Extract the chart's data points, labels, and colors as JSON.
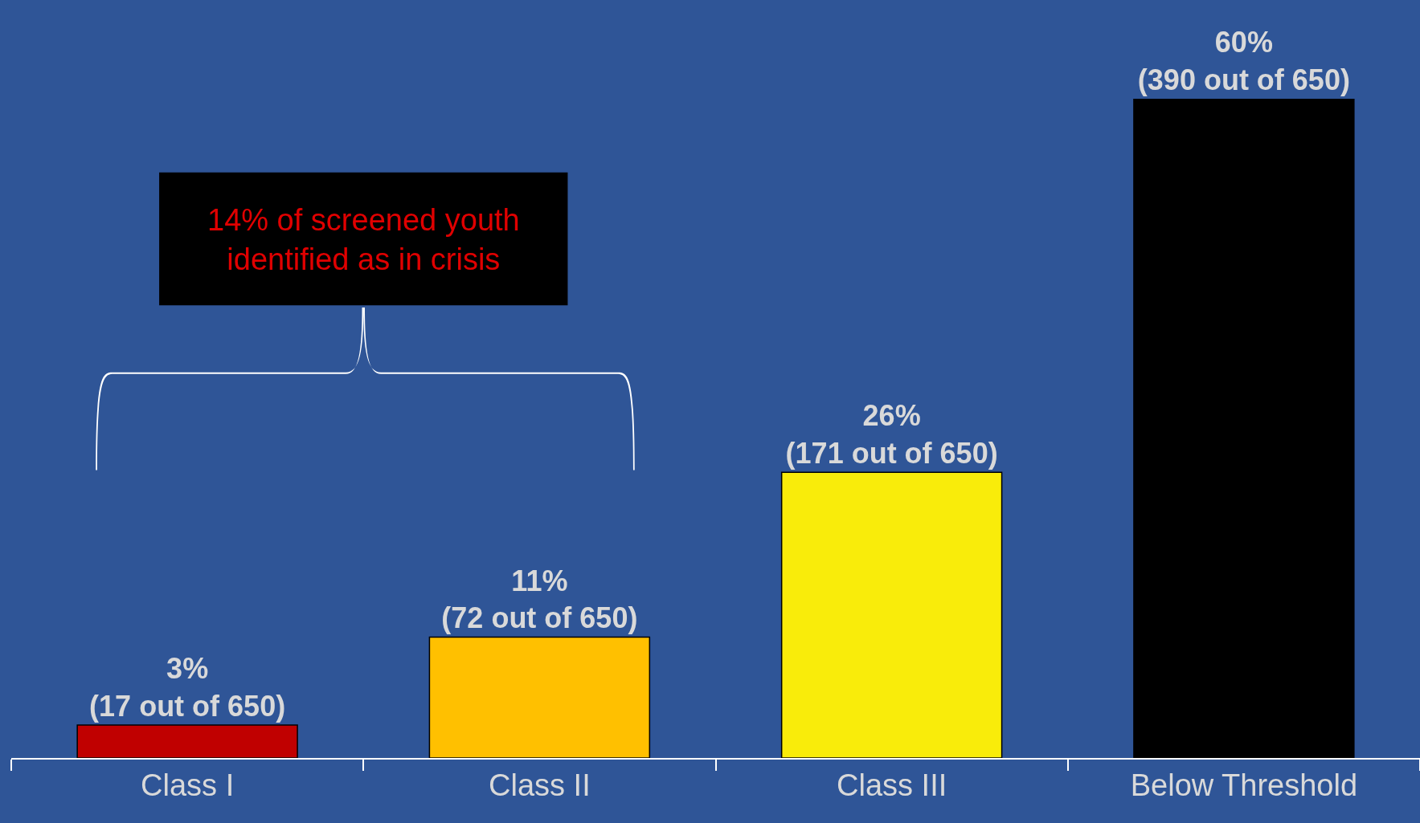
{
  "chart_data": {
    "type": "bar",
    "categories": [
      "Class I",
      "Class II",
      "Class III",
      "Below Threshold"
    ],
    "values": [
      3,
      11,
      26,
      60
    ],
    "colors": [
      "#c00000",
      "#ffc000",
      "#f9ec0a",
      "#000000"
    ],
    "value_labels": [
      "3%\n(17 out of 650)",
      "11%\n(72 out of 650)",
      "26%\n(171 out of 650)",
      "60%\n(390 out of 650)"
    ],
    "ylim": [
      0,
      60
    ],
    "annotations": [
      "14% of screened youth\nidentified as in crisis"
    ],
    "grid": false,
    "legend": false
  }
}
